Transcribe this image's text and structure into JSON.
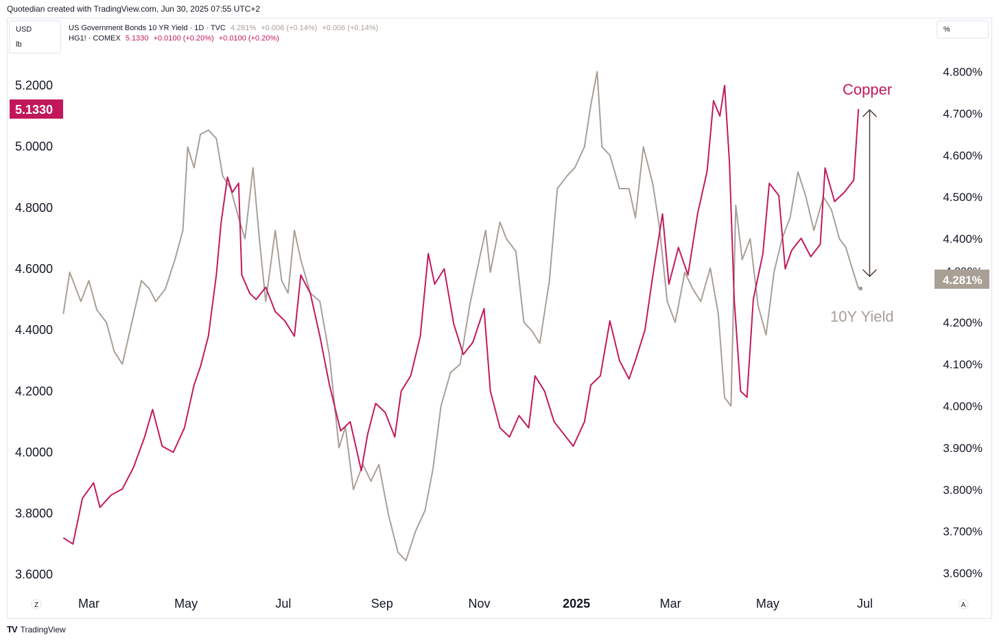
{
  "attribution": "Quotedian created with TradingView.com, Jun 30, 2025 07:55 UTC+2",
  "unit_selector": {
    "top": "USD",
    "bottom": "lb"
  },
  "percent_selector": "%",
  "legend": {
    "yield": {
      "name": "US Government Bonds 10 YR Yield · 1D · TVC",
      "value": "4.281%",
      "change1": "+0.006 (+0.14%)",
      "change2": "+0.006 (+0.14%)"
    },
    "copper": {
      "name": "HG1! · COMEX",
      "value": "5.1330",
      "change1": "+0.0100 (+0.20%)",
      "change2": "+0.0100 (+0.20%)"
    }
  },
  "labels": {
    "copper": "Copper",
    "yield": "10Y Yield"
  },
  "current_badges": {
    "copper": "5.1330",
    "yield": "4.281%"
  },
  "hidden_tick": "4.300%",
  "corner_buttons": {
    "left": "Z",
    "right": "A"
  },
  "footer": {
    "logo": "TV",
    "brand": "TradingView"
  },
  "colors": {
    "copper": "#c2185b",
    "yield": "#a89f95",
    "arrow": "#4a3c33",
    "text": "#131722",
    "border": "#e0e3eb"
  },
  "chart_data": {
    "type": "line",
    "title": "",
    "x_tick_labels": [
      "Mar",
      "May",
      "Jul",
      "Sep",
      "Nov",
      "2025",
      "Mar",
      "May",
      "Jul"
    ],
    "x_tick_dates": [
      "2024-03-01",
      "2024-05-01",
      "2024-07-01",
      "2024-09-01",
      "2024-11-01",
      "2025-01-01",
      "2025-03-01",
      "2025-05-01",
      "2025-07-01"
    ],
    "x_range": [
      "2024-02-13",
      "2025-07-18"
    ],
    "left_axis": {
      "series": "HG1! · COMEX",
      "ylim": [
        3.55,
        5.3
      ],
      "ticks": [
        "3.6000",
        "3.8000",
        "4.0000",
        "4.2000",
        "4.4000",
        "4.6000",
        "4.8000",
        "5.0000",
        "5.2000"
      ]
    },
    "right_axis": {
      "series": "US Government Bonds 10 YR Yield",
      "unit": "%",
      "ylim": [
        3.56,
        4.84
      ],
      "ticks": [
        "3.600%",
        "3.700%",
        "3.800%",
        "3.900%",
        "4.000%",
        "4.100%",
        "4.200%",
        "4.300%",
        "4.400%",
        "4.500%",
        "4.600%",
        "4.700%",
        "4.800%"
      ]
    },
    "series": [
      {
        "name": "HG1! · COMEX",
        "axis": "left",
        "points": [
          [
            "2024-02-14",
            3.72
          ],
          [
            "2024-02-20",
            3.7
          ],
          [
            "2024-02-26",
            3.85
          ],
          [
            "2024-03-04",
            3.9
          ],
          [
            "2024-03-08",
            3.82
          ],
          [
            "2024-03-15",
            3.86
          ],
          [
            "2024-03-22",
            3.88
          ],
          [
            "2024-03-29",
            3.95
          ],
          [
            "2024-04-05",
            4.05
          ],
          [
            "2024-04-10",
            4.14
          ],
          [
            "2024-04-16",
            4.02
          ],
          [
            "2024-04-23",
            4.0
          ],
          [
            "2024-04-30",
            4.08
          ],
          [
            "2024-05-06",
            4.22
          ],
          [
            "2024-05-10",
            4.28
          ],
          [
            "2024-05-15",
            4.38
          ],
          [
            "2024-05-20",
            4.58
          ],
          [
            "2024-05-23",
            4.75
          ],
          [
            "2024-05-27",
            4.9
          ],
          [
            "2024-05-30",
            4.85
          ],
          [
            "2024-06-03",
            4.88
          ],
          [
            "2024-06-05",
            4.58
          ],
          [
            "2024-06-10",
            4.52
          ],
          [
            "2024-06-14",
            4.5
          ],
          [
            "2024-06-20",
            4.54
          ],
          [
            "2024-06-26",
            4.46
          ],
          [
            "2024-07-02",
            4.43
          ],
          [
            "2024-07-08",
            4.38
          ],
          [
            "2024-07-12",
            4.58
          ],
          [
            "2024-07-18",
            4.52
          ],
          [
            "2024-07-24",
            4.38
          ],
          [
            "2024-07-30",
            4.22
          ],
          [
            "2024-08-06",
            4.07
          ],
          [
            "2024-08-12",
            4.1
          ],
          [
            "2024-08-19",
            3.94
          ],
          [
            "2024-08-23",
            4.06
          ],
          [
            "2024-08-28",
            4.16
          ],
          [
            "2024-09-03",
            4.13
          ],
          [
            "2024-09-09",
            4.05
          ],
          [
            "2024-09-13",
            4.2
          ],
          [
            "2024-09-19",
            4.25
          ],
          [
            "2024-09-25",
            4.38
          ],
          [
            "2024-09-30",
            4.65
          ],
          [
            "2024-10-04",
            4.55
          ],
          [
            "2024-10-10",
            4.6
          ],
          [
            "2024-10-16",
            4.42
          ],
          [
            "2024-10-22",
            4.32
          ],
          [
            "2024-10-28",
            4.36
          ],
          [
            "2024-11-04",
            4.47
          ],
          [
            "2024-11-08",
            4.2
          ],
          [
            "2024-11-14",
            4.08
          ],
          [
            "2024-11-20",
            4.05
          ],
          [
            "2024-11-26",
            4.12
          ],
          [
            "2024-12-02",
            4.08
          ],
          [
            "2024-12-06",
            4.25
          ],
          [
            "2024-12-12",
            4.2
          ],
          [
            "2024-12-18",
            4.1
          ],
          [
            "2024-12-24",
            4.06
          ],
          [
            "2024-12-30",
            4.02
          ],
          [
            "2025-01-06",
            4.1
          ],
          [
            "2025-01-10",
            4.22
          ],
          [
            "2025-01-16",
            4.25
          ],
          [
            "2025-01-22",
            4.43
          ],
          [
            "2025-01-28",
            4.3
          ],
          [
            "2025-02-03",
            4.24
          ],
          [
            "2025-02-07",
            4.3
          ],
          [
            "2025-02-13",
            4.4
          ],
          [
            "2025-02-18",
            4.58
          ],
          [
            "2025-02-24",
            4.78
          ],
          [
            "2025-02-28",
            4.55
          ],
          [
            "2025-03-06",
            4.67
          ],
          [
            "2025-03-12",
            4.58
          ],
          [
            "2025-03-18",
            4.78
          ],
          [
            "2025-03-24",
            4.92
          ],
          [
            "2025-03-28",
            5.15
          ],
          [
            "2025-04-01",
            5.1
          ],
          [
            "2025-04-04",
            5.2
          ],
          [
            "2025-04-07",
            4.95
          ],
          [
            "2025-04-10",
            4.5
          ],
          [
            "2025-04-14",
            4.2
          ],
          [
            "2025-04-18",
            4.18
          ],
          [
            "2025-04-22",
            4.5
          ],
          [
            "2025-04-28",
            4.65
          ],
          [
            "2025-05-02",
            4.88
          ],
          [
            "2025-05-08",
            4.84
          ],
          [
            "2025-05-12",
            4.6
          ],
          [
            "2025-05-16",
            4.66
          ],
          [
            "2025-05-22",
            4.7
          ],
          [
            "2025-05-28",
            4.64
          ],
          [
            "2025-06-03",
            4.68
          ],
          [
            "2025-06-06",
            4.93
          ],
          [
            "2025-06-12",
            4.82
          ],
          [
            "2025-06-18",
            4.85
          ],
          [
            "2025-06-24",
            4.89
          ],
          [
            "2025-06-27",
            5.123
          ]
        ]
      },
      {
        "name": "US Government Bonds 10 YR Yield",
        "axis": "right",
        "points": [
          [
            "2024-02-14",
            4.22
          ],
          [
            "2024-02-18",
            4.32
          ],
          [
            "2024-02-25",
            4.25
          ],
          [
            "2024-03-01",
            4.3
          ],
          [
            "2024-03-06",
            4.23
          ],
          [
            "2024-03-12",
            4.2
          ],
          [
            "2024-03-17",
            4.13
          ],
          [
            "2024-03-22",
            4.1
          ],
          [
            "2024-03-28",
            4.2
          ],
          [
            "2024-04-03",
            4.3
          ],
          [
            "2024-04-08",
            4.28
          ],
          [
            "2024-04-12",
            4.25
          ],
          [
            "2024-04-18",
            4.28
          ],
          [
            "2024-04-24",
            4.35
          ],
          [
            "2024-04-29",
            4.42
          ],
          [
            "2024-05-02",
            4.62
          ],
          [
            "2024-05-06",
            4.57
          ],
          [
            "2024-05-10",
            4.65
          ],
          [
            "2024-05-15",
            4.66
          ],
          [
            "2024-05-20",
            4.64
          ],
          [
            "2024-05-24",
            4.55
          ],
          [
            "2024-05-29",
            4.52
          ],
          [
            "2024-06-03",
            4.45
          ],
          [
            "2024-06-07",
            4.4
          ],
          [
            "2024-06-12",
            4.57
          ],
          [
            "2024-06-16",
            4.4
          ],
          [
            "2024-06-20",
            4.25
          ],
          [
            "2024-06-26",
            4.42
          ],
          [
            "2024-06-30",
            4.3
          ],
          [
            "2024-07-04",
            4.27
          ],
          [
            "2024-07-08",
            4.42
          ],
          [
            "2024-07-12",
            4.35
          ],
          [
            "2024-07-18",
            4.27
          ],
          [
            "2024-07-24",
            4.25
          ],
          [
            "2024-07-30",
            4.12
          ],
          [
            "2024-08-05",
            3.9
          ],
          [
            "2024-08-09",
            3.95
          ],
          [
            "2024-08-14",
            3.8
          ],
          [
            "2024-08-20",
            3.86
          ],
          [
            "2024-08-25",
            3.82
          ],
          [
            "2024-08-30",
            3.86
          ],
          [
            "2024-09-05",
            3.74
          ],
          [
            "2024-09-11",
            3.65
          ],
          [
            "2024-09-16",
            3.63
          ],
          [
            "2024-09-22",
            3.7
          ],
          [
            "2024-09-28",
            3.75
          ],
          [
            "2024-10-03",
            3.85
          ],
          [
            "2024-10-08",
            4.0
          ],
          [
            "2024-10-14",
            4.08
          ],
          [
            "2024-10-20",
            4.1
          ],
          [
            "2024-10-26",
            4.24
          ],
          [
            "2024-11-01",
            4.35
          ],
          [
            "2024-11-05",
            4.42
          ],
          [
            "2024-11-08",
            4.32
          ],
          [
            "2024-11-14",
            4.44
          ],
          [
            "2024-11-18",
            4.4
          ],
          [
            "2024-11-24",
            4.37
          ],
          [
            "2024-11-29",
            4.2
          ],
          [
            "2024-12-04",
            4.18
          ],
          [
            "2024-12-09",
            4.15
          ],
          [
            "2024-12-15",
            4.3
          ],
          [
            "2024-12-20",
            4.52
          ],
          [
            "2024-12-26",
            4.55
          ],
          [
            "2024-12-31",
            4.57
          ],
          [
            "2025-01-06",
            4.62
          ],
          [
            "2025-01-10",
            4.72
          ],
          [
            "2025-01-14",
            4.8
          ],
          [
            "2025-01-17",
            4.62
          ],
          [
            "2025-01-22",
            4.6
          ],
          [
            "2025-01-28",
            4.52
          ],
          [
            "2025-02-03",
            4.52
          ],
          [
            "2025-02-07",
            4.45
          ],
          [
            "2025-02-12",
            4.62
          ],
          [
            "2025-02-18",
            4.53
          ],
          [
            "2025-02-22",
            4.43
          ],
          [
            "2025-02-27",
            4.25
          ],
          [
            "2025-03-04",
            4.2
          ],
          [
            "2025-03-10",
            4.32
          ],
          [
            "2025-03-15",
            4.28
          ],
          [
            "2025-03-20",
            4.25
          ],
          [
            "2025-03-26",
            4.33
          ],
          [
            "2025-03-31",
            4.22
          ],
          [
            "2025-04-04",
            4.02
          ],
          [
            "2025-04-08",
            4.0
          ],
          [
            "2025-04-11",
            4.48
          ],
          [
            "2025-04-15",
            4.35
          ],
          [
            "2025-04-20",
            4.4
          ],
          [
            "2025-04-25",
            4.24
          ],
          [
            "2025-04-30",
            4.17
          ],
          [
            "2025-05-05",
            4.32
          ],
          [
            "2025-05-10",
            4.4
          ],
          [
            "2025-05-15",
            4.45
          ],
          [
            "2025-05-20",
            4.56
          ],
          [
            "2025-05-25",
            4.5
          ],
          [
            "2025-05-30",
            4.42
          ],
          [
            "2025-06-05",
            4.5
          ],
          [
            "2025-06-10",
            4.47
          ],
          [
            "2025-06-15",
            4.4
          ],
          [
            "2025-06-19",
            4.38
          ],
          [
            "2025-06-23",
            4.33
          ],
          [
            "2025-06-27",
            4.281
          ]
        ]
      }
    ],
    "annotation": {
      "type": "double-arrow",
      "date": "2025-07-04",
      "from_left_value": 5.12,
      "to_right_value": 4.31
    }
  }
}
